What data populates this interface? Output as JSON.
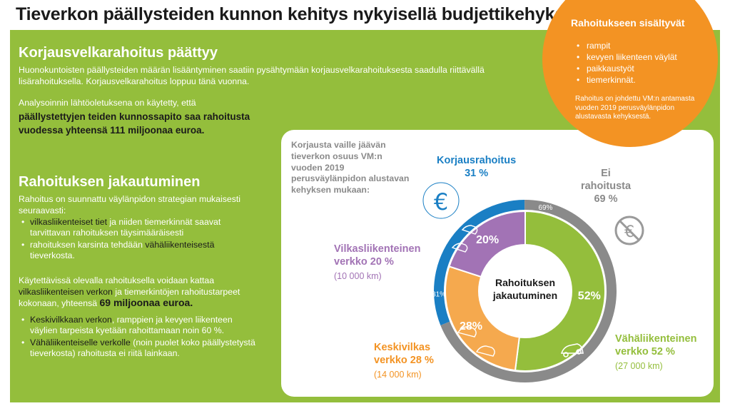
{
  "title": "Tieverkon päällysteiden kunnon kehitys nykyisellä budjettikehyksellä",
  "section1": {
    "heading": "Korjausvelkarahoitus päättyy",
    "para1": "Huonokuntoisten päällysteiden määrän lisääntyminen saatiin pysähtymään korjausvelkarahoituksesta saadulla riittävällä lisärahoituksella. Korjausvelkarahoitus loppuu tänä vuonna.",
    "para2": "Analysoinnin lähtöoletuksena on käytetty, että",
    "para2_bold_line1": "päällystettyjen teiden kunnossapito saa rahoitusta",
    "para2_bold_line2": "vuodessa yhteensä 111 miljoonaa euroa."
  },
  "section2": {
    "heading": "Rahoituksen jakautuminen",
    "intro": "Rahoitus on suunnattu väylänpidon strategian mukaisesti seuraavasti:",
    "bullet1_a": "vilkasliikenteiset tiet",
    "bullet1_b": " ja niiden tiemerkinnät saavat tarvittavan rahoituksen täysimääräisesti",
    "bullet2_a": "rahoituksen karsinta tehdään ",
    "bullet2_b": "vähäliikenteisestä",
    "bullet2_c": " tieverkosta.",
    "summary_a": "Käytettävissä olevalla rahoituksella voidaan kattaa ",
    "summary_b": "vilkasliikenteisen verkon",
    "summary_c": " ja tiemerkintöjen rahoitustarpeet kokonaan, yhteensä ",
    "summary_num": "69 miljoonaa euroa.",
    "bullet3_a": "Keskivilkkaan verkon",
    "bullet3_b": ", ramppien ja kevyen liikenteen väylien tarpeista kyetään rahoittamaan noin 60 %.",
    "bullet4_a": "Vähäliikenteiselle verkolle",
    "bullet4_b": " (noin puolet koko päällystetystä tieverkosta) rahoitusta ei riitä lainkaan."
  },
  "included": {
    "title": "Rahoitukseen sisältyvät",
    "items": [
      "rampit",
      "kevyen liikenteen väylät",
      "paikkaustyöt",
      "tiemerkinnät."
    ],
    "note": "Rahoitus on johdettu VM:n antamasta vuoden 2019 perusväylänpidon alustavasta kehyksestä."
  },
  "chart_note": "Korjausta vaille jäävän tieverkon osuus VM:n vuoden 2019 perusväylänpidon alustavan kehyksen mukaan:",
  "icons": {
    "euro": "euro-icon",
    "no_euro": "no-euro-icon",
    "car": "car-icon"
  },
  "colors": {
    "green": "#94be3c",
    "purple": "#a273b5",
    "orange": "#f39323",
    "light_orange": "#f5a94e",
    "blue": "#1a7fc4",
    "gray": "#8a8a8a"
  },
  "chart_data": {
    "type": "pie",
    "center_label_line1": "Rahoituksen",
    "center_label_line2": "jakautuminen",
    "inner": [
      {
        "name": "Vilkasliikenteinen verkko",
        "value": 20,
        "label": "20%",
        "length": "(10 000 km)",
        "caption": "Vilkasliikenteinen verkko 20 %",
        "color": "#a273b5"
      },
      {
        "name": "Keskivilkas verkko",
        "value": 28,
        "label": "28%",
        "length": "(14 000 km)",
        "caption": "Keskivilkas verkko 28 %",
        "color": "#f5a94e"
      },
      {
        "name": "Vähäliikenteinen verkko",
        "value": 52,
        "label": "52%",
        "length": "(27 000 km)",
        "caption": "Vähäliikenteinen verkko 52 %",
        "color": "#94be3c"
      }
    ],
    "outer": [
      {
        "name": "Korjausrahoitus",
        "value": 31,
        "label": "31%",
        "caption_line1": "Korjausrahoitus",
        "caption_line2": "31 %",
        "color": "#1a7fc4"
      },
      {
        "name": "Ei rahoitusta",
        "value": 69,
        "label": "69%",
        "caption_line1": "Ei",
        "caption_line2": "rahoitusta",
        "caption_line3": "69 %",
        "color": "#8a8a8a"
      }
    ]
  }
}
